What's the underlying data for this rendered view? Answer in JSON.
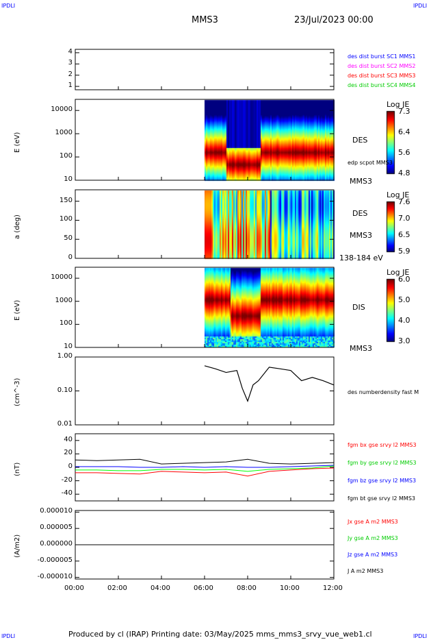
{
  "header": {
    "corner_left": "IPDLI",
    "corner_right": "IPDLI",
    "mission": "MMS3",
    "date": "23/Jul/2023 00:00"
  },
  "footer": {
    "text": "Produced by cl (IRAP)   Printing date: 03/May/2025   mms_mms3_srvy_vue_web1.cl",
    "corner_left": "IPDLI",
    "corner_right": "IPDLI"
  },
  "colors": {
    "blue": "#0000ff",
    "magenta": "#ff00ff",
    "red": "#ff0000",
    "green": "#00ff00",
    "black": "#000000"
  },
  "chart_data": [
    {
      "type": "line",
      "name_labels": [
        "des dist burst SC1 MMS1",
        "des dist burst SC2 MMS2",
        "des dist burst SC3 MMS3",
        "des dist burst SC4 MMS4"
      ],
      "yticks": [
        "1",
        "2",
        "3",
        "4"
      ],
      "ylim": [
        0.7,
        4.3
      ]
    },
    {
      "type": "heatmap",
      "ylabel": "E (eV)",
      "yticks": [
        "10",
        "100",
        "1000",
        "10000"
      ],
      "yscale": "log",
      "labels": [
        "DES",
        "edp scpot MMS3",
        "MMS3"
      ],
      "colorbar": {
        "title": "Log JE",
        "ticks": [
          "7.3",
          "6.4",
          "5.6",
          "4.8"
        ],
        "range": [
          4.8,
          7.3
        ]
      },
      "data_start": "06:00"
    },
    {
      "type": "heatmap",
      "ylabel": "a (deg)",
      "yticks": [
        "0",
        "50",
        "100",
        "150"
      ],
      "ylim": [
        0,
        180
      ],
      "labels": [
        "DES",
        "MMS3",
        "138-184 eV"
      ],
      "colorbar": {
        "title": "Log JE",
        "ticks": [
          "7.6",
          "7.0",
          "6.5",
          "5.9"
        ],
        "range": [
          5.9,
          7.6
        ]
      },
      "data_start": "06:00"
    },
    {
      "type": "heatmap",
      "ylabel": "E (eV)",
      "yticks": [
        "10",
        "100",
        "1000",
        "10000"
      ],
      "yscale": "log",
      "labels": [
        "DIS",
        "MMS3"
      ],
      "colorbar": {
        "title": "Log JE",
        "ticks": [
          "6.0",
          "5.0",
          "4.0",
          "3.0"
        ],
        "range": [
          3.0,
          6.0
        ]
      },
      "data_start": "06:00"
    },
    {
      "type": "line",
      "ylabel": "(cm^-3)",
      "yscale": "log",
      "ylim": [
        0.01,
        1.0
      ],
      "yticks": [
        "0.01",
        "0.10",
        "1.00"
      ],
      "series": [
        {
          "name": "des numberdensity fast M",
          "color": "#000000",
          "x": [
            "06:00",
            "06:30",
            "07:00",
            "07:30",
            "07:45",
            "08:00",
            "08:15",
            "08:30",
            "09:00",
            "09:30",
            "10:00",
            "10:30",
            "11:00",
            "11:30",
            "12:00"
          ],
          "y": [
            0.55,
            0.45,
            0.35,
            0.4,
            0.12,
            0.05,
            0.15,
            0.2,
            0.5,
            0.45,
            0.4,
            0.2,
            0.25,
            0.2,
            0.15
          ]
        }
      ]
    },
    {
      "type": "line",
      "ylabel": "(nT)",
      "ylim": [
        -50,
        50
      ],
      "yticks": [
        "-40",
        "-20",
        "0",
        "20",
        "40"
      ],
      "x": [
        "00:00",
        "01:00",
        "02:00",
        "03:00",
        "04:00",
        "05:00",
        "06:00",
        "07:00",
        "08:00",
        "09:00",
        "10:00",
        "11:00",
        "12:00"
      ],
      "series": [
        {
          "name": "fgm bx gse srvy l2 MMS3",
          "color": "#ff0000",
          "y": [
            -8,
            -8,
            -9,
            -10,
            -6,
            -7,
            -8,
            -7,
            -13,
            -6,
            -4,
            -2,
            -1
          ]
        },
        {
          "name": "fgm by gse srvy l2 MMS3",
          "color": "#00ff00",
          "y": [
            -4,
            -4,
            -5,
            -5,
            -3,
            -3,
            -4,
            -3,
            -6,
            -3,
            -2,
            -1,
            2
          ]
        },
        {
          "name": "fgm bz gse srvy l2 MMS3",
          "color": "#0000ff",
          "y": [
            1,
            1,
            1,
            0,
            0,
            1,
            0,
            1,
            0,
            0,
            1,
            2,
            3
          ]
        },
        {
          "name": "fgm bt gse srvy l2 MMS3",
          "color": "#000000",
          "y": [
            11,
            10,
            11,
            12,
            5,
            6,
            7,
            8,
            12,
            6,
            5,
            6,
            7
          ]
        }
      ]
    },
    {
      "type": "line",
      "ylabel": "(A/m2)",
      "ylim": [
        -1e-05,
        1e-05
      ],
      "yticks": [
        "-0.000010",
        "-0.000005",
        "0.000000",
        "0.000005",
        "0.000010"
      ],
      "series": [
        {
          "name": "Jx gse A m2 MMS3",
          "color": "#ff0000"
        },
        {
          "name": "Jy gse A m2 MMS3",
          "color": "#00ff00"
        },
        {
          "name": "Jz gse A m2 MMS3",
          "color": "#0000ff"
        },
        {
          "name": "J A m2 MMS3",
          "color": "#000000"
        }
      ]
    }
  ],
  "xaxis": {
    "ticks": [
      "00:00",
      "02:00",
      "04:00",
      "06:00",
      "08:00",
      "10:00",
      "12:00"
    ]
  }
}
